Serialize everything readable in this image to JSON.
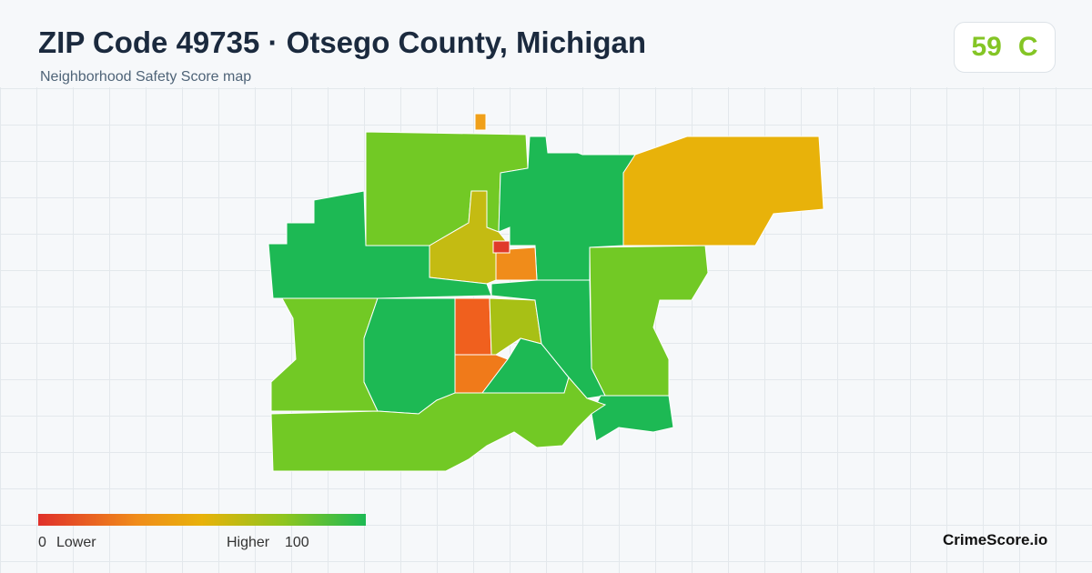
{
  "header": {
    "title": "ZIP Code 49735 · Otsego County, Michigan",
    "subtitle": "Neighborhood Safety Score map"
  },
  "score": {
    "value": "59",
    "grade": "C"
  },
  "legend": {
    "min": "0",
    "min_label": "Lower",
    "max_label": "Higher",
    "max": "100"
  },
  "brand": "CrimeScore.io"
}
